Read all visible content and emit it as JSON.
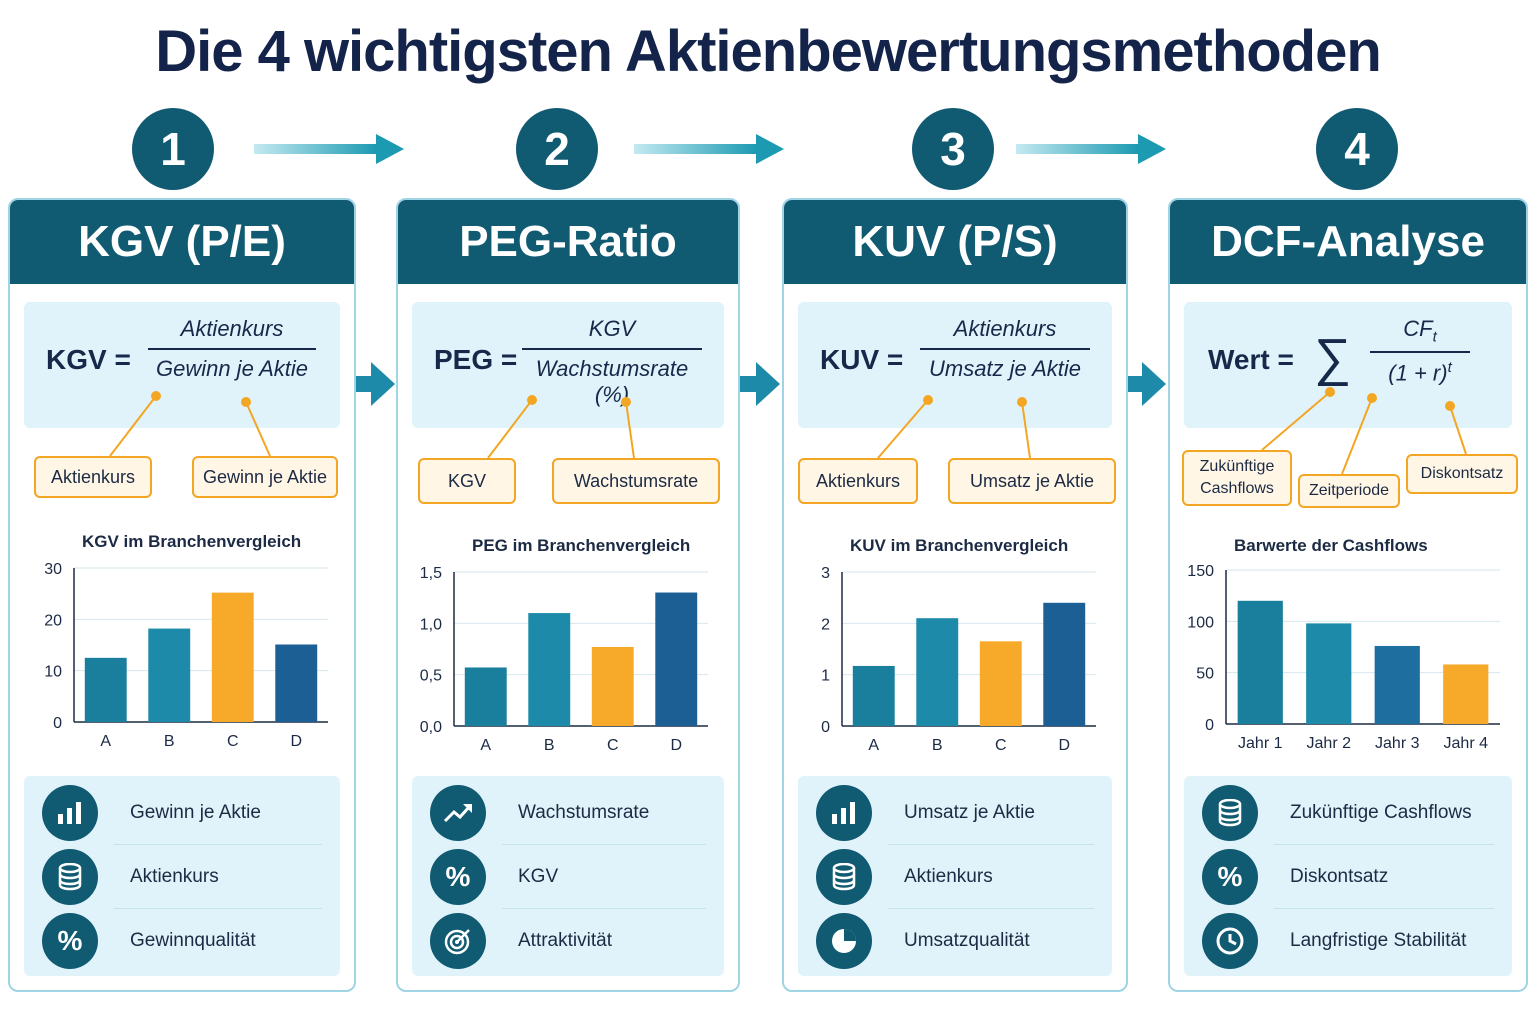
{
  "title": "Die 4 wichtigsten Aktienbewertungsmethoden",
  "colors": {
    "primary": "#105a72",
    "teal": "#1c8aa8",
    "blue": "#1b5f95",
    "highlight": "#f7aa29",
    "panel": "#e1f3fa",
    "chip_border": "#f3a623"
  },
  "methods": [
    {
      "number": "1",
      "name": "KGV (P/E)",
      "formula": {
        "lhs": "KGV =",
        "numerator": "Aktienkurs",
        "denominator": "Gewinn je Aktie"
      },
      "chips": [
        "Aktienkurs",
        "Gewinn je Aktie"
      ],
      "chart_title": "KGV im Branchenvergleich",
      "chart_data": {
        "type": "bar",
        "title": "KGV im Branchenvergleich",
        "categories": [
          "A",
          "B",
          "C",
          "D"
        ],
        "values": [
          12.5,
          18.2,
          25.2,
          15.1
        ],
        "highlight_index": 2,
        "ylim": [
          0,
          30
        ],
        "yticks": [
          0,
          10,
          20,
          30
        ],
        "ytick_labels": [
          "0",
          "10",
          "20",
          "30"
        ]
      },
      "list": [
        {
          "icon": "bar-chart-icon",
          "label": "Gewinn je Aktie"
        },
        {
          "icon": "coin-stack-icon",
          "label": "Aktienkurs"
        },
        {
          "icon": "percent-icon",
          "label": "Gewinnqualität"
        }
      ]
    },
    {
      "number": "2",
      "name": "PEG-Ratio",
      "formula": {
        "lhs": "PEG =",
        "numerator": "KGV",
        "denominator": "Wachstumsrate (%)"
      },
      "chips": [
        "KGV",
        "Wachstumsrate"
      ],
      "chart_title": "PEG im Branchenvergleich",
      "chart_data": {
        "type": "bar",
        "title": "PEG im Branchenvergleich",
        "categories": [
          "A",
          "B",
          "C",
          "D"
        ],
        "values": [
          0.57,
          1.1,
          0.77,
          1.3
        ],
        "highlight_index": 2,
        "ylim": [
          0,
          1.5
        ],
        "yticks": [
          0,
          0.5,
          1.0,
          1.5
        ],
        "ytick_labels": [
          "0,0",
          "0,5",
          "1,0",
          "1,5"
        ]
      },
      "list": [
        {
          "icon": "trend-up-icon",
          "label": "Wachstumsrate"
        },
        {
          "icon": "percent-icon",
          "label": "KGV"
        },
        {
          "icon": "target-icon",
          "label": "Attraktivität"
        }
      ]
    },
    {
      "number": "3",
      "name": "KUV (P/S)",
      "formula": {
        "lhs": "KUV =",
        "numerator": "Aktienkurs",
        "denominator": "Umsatz je Aktie"
      },
      "chips": [
        "Aktienkurs",
        "Umsatz je Aktie"
      ],
      "chart_title": "KUV im Branchenvergleich",
      "chart_data": {
        "type": "bar",
        "title": "KUV im Branchenvergleich",
        "categories": [
          "A",
          "B",
          "C",
          "D"
        ],
        "values": [
          1.17,
          2.1,
          1.65,
          2.4
        ],
        "highlight_index": 2,
        "ylim": [
          0,
          3
        ],
        "yticks": [
          0,
          1,
          2,
          3
        ],
        "ytick_labels": [
          "0",
          "1",
          "2",
          "3"
        ]
      },
      "list": [
        {
          "icon": "bar-chart-icon",
          "label": "Umsatz je Aktie"
        },
        {
          "icon": "coin-stack-icon",
          "label": "Aktienkurs"
        },
        {
          "icon": "pie-chart-icon",
          "label": "Umsatzqualität"
        }
      ]
    },
    {
      "number": "4",
      "name": "DCF-Analyse",
      "formula": {
        "lhs": "Wert =",
        "sum": "∑",
        "numerator": "CF",
        "numerator_sub": "t",
        "denominator": "(1 + r)",
        "denominator_sup": "t"
      },
      "chips": [
        "Zukünftige Cashflows",
        "Zeitperiode",
        "Diskontsatz"
      ],
      "chart_title": "Barwerte der Cashflows",
      "chart_data": {
        "type": "bar",
        "title": "Barwerte der Cashflows",
        "categories": [
          "Jahr 1",
          "Jahr 2",
          "Jahr 3",
          "Jahr 4"
        ],
        "values": [
          120,
          98,
          76,
          58
        ],
        "highlight_index": 3,
        "ylim": [
          0,
          150
        ],
        "yticks": [
          0,
          50,
          100,
          150
        ],
        "ytick_labels": [
          "0",
          "50",
          "100",
          "150"
        ]
      },
      "list": [
        {
          "icon": "coin-stack-icon",
          "label": "Zukünftige Cashflows"
        },
        {
          "icon": "percent-icon",
          "label": "Diskontsatz"
        },
        {
          "icon": "clock-icon",
          "label": "Langfristige Stabilität"
        }
      ]
    }
  ]
}
